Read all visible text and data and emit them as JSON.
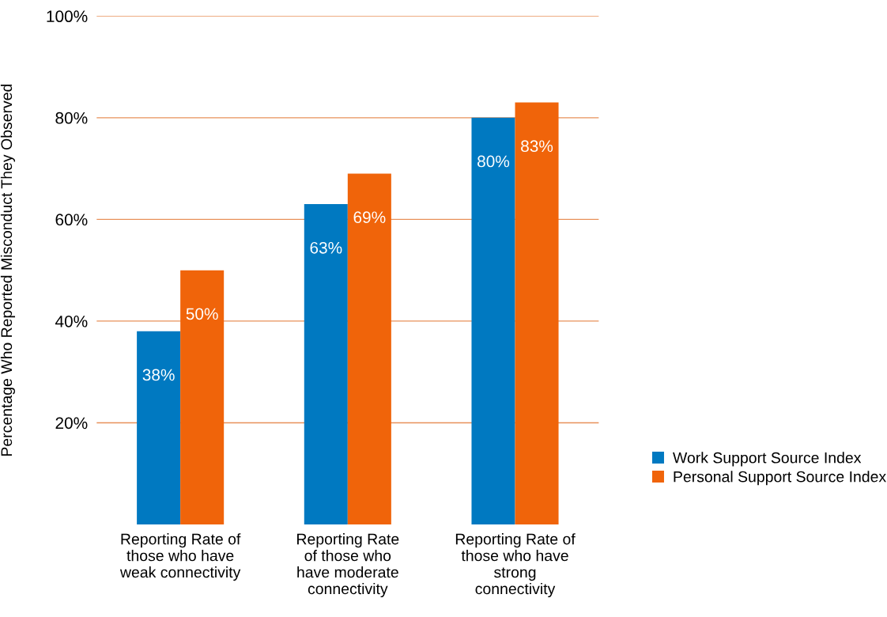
{
  "chart_data": {
    "type": "bar",
    "ylabel": "Percentage Who Reported Misconduct They Observed",
    "categories": [
      "Reporting Rate of\nthose who have\nweak connectivity",
      "Reporting Rate\nof those who\nhave moderate\nconnectivity",
      "Reporting Rate of\nthose who have\nstrong\nconnectivity"
    ],
    "series": [
      {
        "name": "Work Support Source Index",
        "color": "#0079c1",
        "values": [
          38,
          63,
          80
        ],
        "value_labels": [
          "38%",
          "63%",
          "80%"
        ]
      },
      {
        "name": "Personal Support Source Index",
        "color": "#f0640a",
        "values": [
          50,
          69,
          83
        ],
        "value_labels": [
          "50%",
          "69%",
          "83%"
        ]
      }
    ],
    "ylim": [
      0,
      100
    ],
    "yticks": [
      {
        "value": 20,
        "label": "20%"
      },
      {
        "value": 40,
        "label": "40%"
      },
      {
        "value": 60,
        "label": "60%"
      },
      {
        "value": 80,
        "label": "80%"
      },
      {
        "value": 100,
        "label": "100%"
      }
    ],
    "grid": "y",
    "legend": "bottom right"
  }
}
